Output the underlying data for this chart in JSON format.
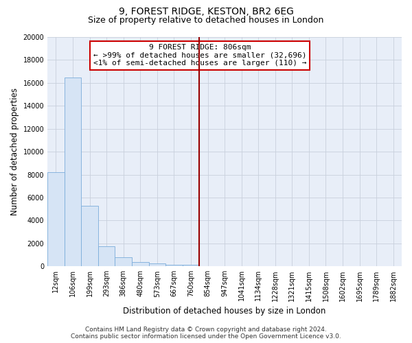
{
  "title": "9, FOREST RIDGE, KESTON, BR2 6EG",
  "subtitle": "Size of property relative to detached houses in London",
  "xlabel": "Distribution of detached houses by size in London",
  "ylabel": "Number of detached properties",
  "bar_labels": [
    "12sqm",
    "106sqm",
    "199sqm",
    "293sqm",
    "386sqm",
    "480sqm",
    "573sqm",
    "667sqm",
    "760sqm",
    "854sqm",
    "947sqm",
    "1041sqm",
    "1134sqm",
    "1228sqm",
    "1321sqm",
    "1415sqm",
    "1508sqm",
    "1602sqm",
    "1695sqm",
    "1789sqm",
    "1882sqm"
  ],
  "bar_heights": [
    8200,
    16500,
    5300,
    1750,
    800,
    350,
    230,
    160,
    120,
    0,
    0,
    0,
    0,
    0,
    0,
    0,
    0,
    0,
    0,
    0,
    0
  ],
  "bar_color": "#d6e4f5",
  "bar_edge_color": "#7aacda",
  "vline_x": 8.5,
  "vline_color": "#990000",
  "ylim": [
    0,
    20000
  ],
  "yticks": [
    0,
    2000,
    4000,
    6000,
    8000,
    10000,
    12000,
    14000,
    16000,
    18000,
    20000
  ],
  "grid_color": "#c8d0dc",
  "bg_color": "#e8eef8",
  "annotation_text": "9 FOREST RIDGE: 806sqm\n← >99% of detached houses are smaller (32,696)\n<1% of semi-detached houses are larger (110) →",
  "annotation_box_color": "#ffffff",
  "annotation_box_edge": "#cc0000",
  "footer_line1": "Contains HM Land Registry data © Crown copyright and database right 2024.",
  "footer_line2": "Contains public sector information licensed under the Open Government Licence v3.0.",
  "title_fontsize": 10,
  "subtitle_fontsize": 9,
  "axis_label_fontsize": 8.5,
  "tick_fontsize": 7,
  "annotation_fontsize": 8,
  "footer_fontsize": 6.5
}
